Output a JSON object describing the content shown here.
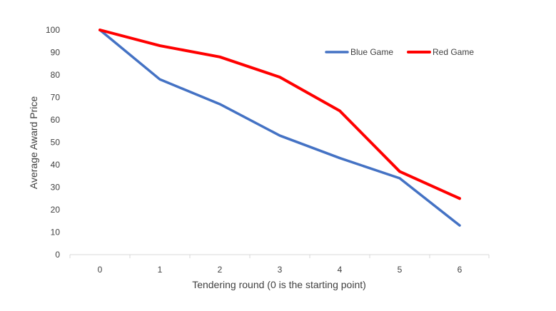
{
  "chart_data": {
    "type": "line",
    "title": "",
    "xlabel": "Tendering round (0 is the starting point)",
    "ylabel": "Average Award Price",
    "categories": [
      "0",
      "1",
      "2",
      "3",
      "4",
      "5",
      "6"
    ],
    "x": [
      0,
      1,
      2,
      3,
      4,
      5,
      6
    ],
    "ylim": [
      0,
      100
    ],
    "yticks": [
      "0",
      "10",
      "20",
      "30",
      "40",
      "50",
      "60",
      "70",
      "80",
      "90",
      "100"
    ],
    "grid": false,
    "legend_position": "top-right",
    "series": [
      {
        "name": "Blue Game",
        "color": "#4472C4",
        "values": [
          100,
          78,
          67,
          53,
          43,
          34,
          13
        ]
      },
      {
        "name": "Red Game",
        "color": "#FF0000",
        "values": [
          100,
          93,
          88,
          79,
          64,
          37,
          25
        ]
      }
    ]
  }
}
